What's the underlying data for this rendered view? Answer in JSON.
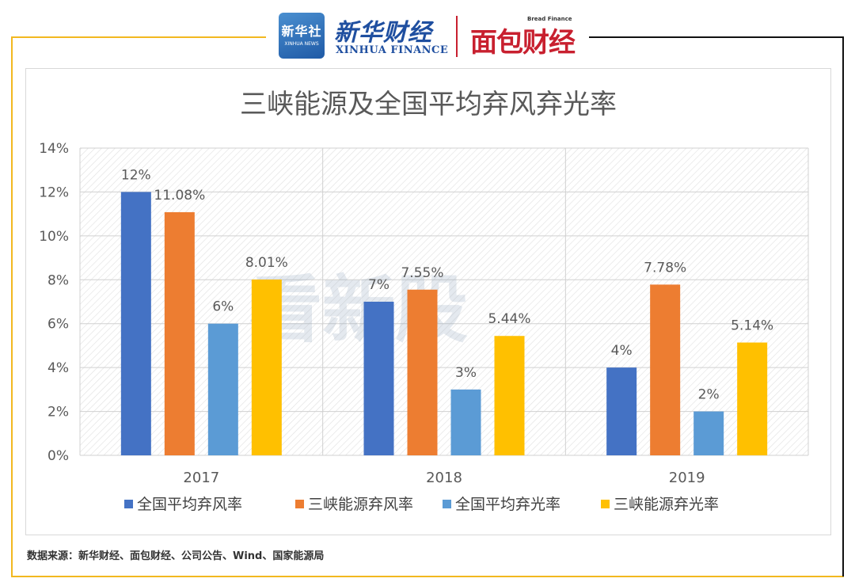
{
  "header": {
    "logo1_top": "新华社",
    "logo1_bottom": "XINHUA NEWS",
    "brand_cn": "新华财经",
    "brand_en": "XINHUA FINANCE",
    "partner_en": "Bread Finance",
    "partner_cn": "面包财经"
  },
  "watermark": "看新股",
  "source": "数据来源：新华财经、面包财经、公司公告、Wind、国家能源局",
  "colors": {
    "series1": "#4472c4",
    "series2": "#ed7d31",
    "series3": "#5b9bd5",
    "series4": "#ffc000",
    "frame_accent": "#f2b820"
  },
  "chart_data": {
    "type": "bar",
    "title": "三峡能源及全国平均弃风弃光率",
    "xlabel": "",
    "ylabel": "",
    "categories": [
      "2017",
      "2018",
      "2019"
    ],
    "ylim": [
      0,
      14
    ],
    "yticks": [
      0,
      2,
      4,
      6,
      8,
      10,
      12,
      14
    ],
    "ytick_labels": [
      "0%",
      "2%",
      "4%",
      "6%",
      "8%",
      "10%",
      "12%",
      "14%"
    ],
    "grid": true,
    "legend_position": "bottom",
    "series": [
      {
        "name": "全国平均弃风率",
        "values": [
          12,
          7,
          4
        ],
        "labels": [
          "12%",
          "7%",
          "4%"
        ]
      },
      {
        "name": "三峡能源弃风率",
        "values": [
          11.08,
          7.55,
          7.78
        ],
        "labels": [
          "11.08%",
          "7.55%",
          "7.78%"
        ]
      },
      {
        "name": "全国平均弃光率",
        "values": [
          6,
          3,
          2
        ],
        "labels": [
          "6%",
          "3%",
          "2%"
        ]
      },
      {
        "name": "三峡能源弃光率",
        "values": [
          8.01,
          5.44,
          5.14
        ],
        "labels": [
          "8.01%",
          "5.44%",
          "5.14%"
        ]
      }
    ]
  }
}
